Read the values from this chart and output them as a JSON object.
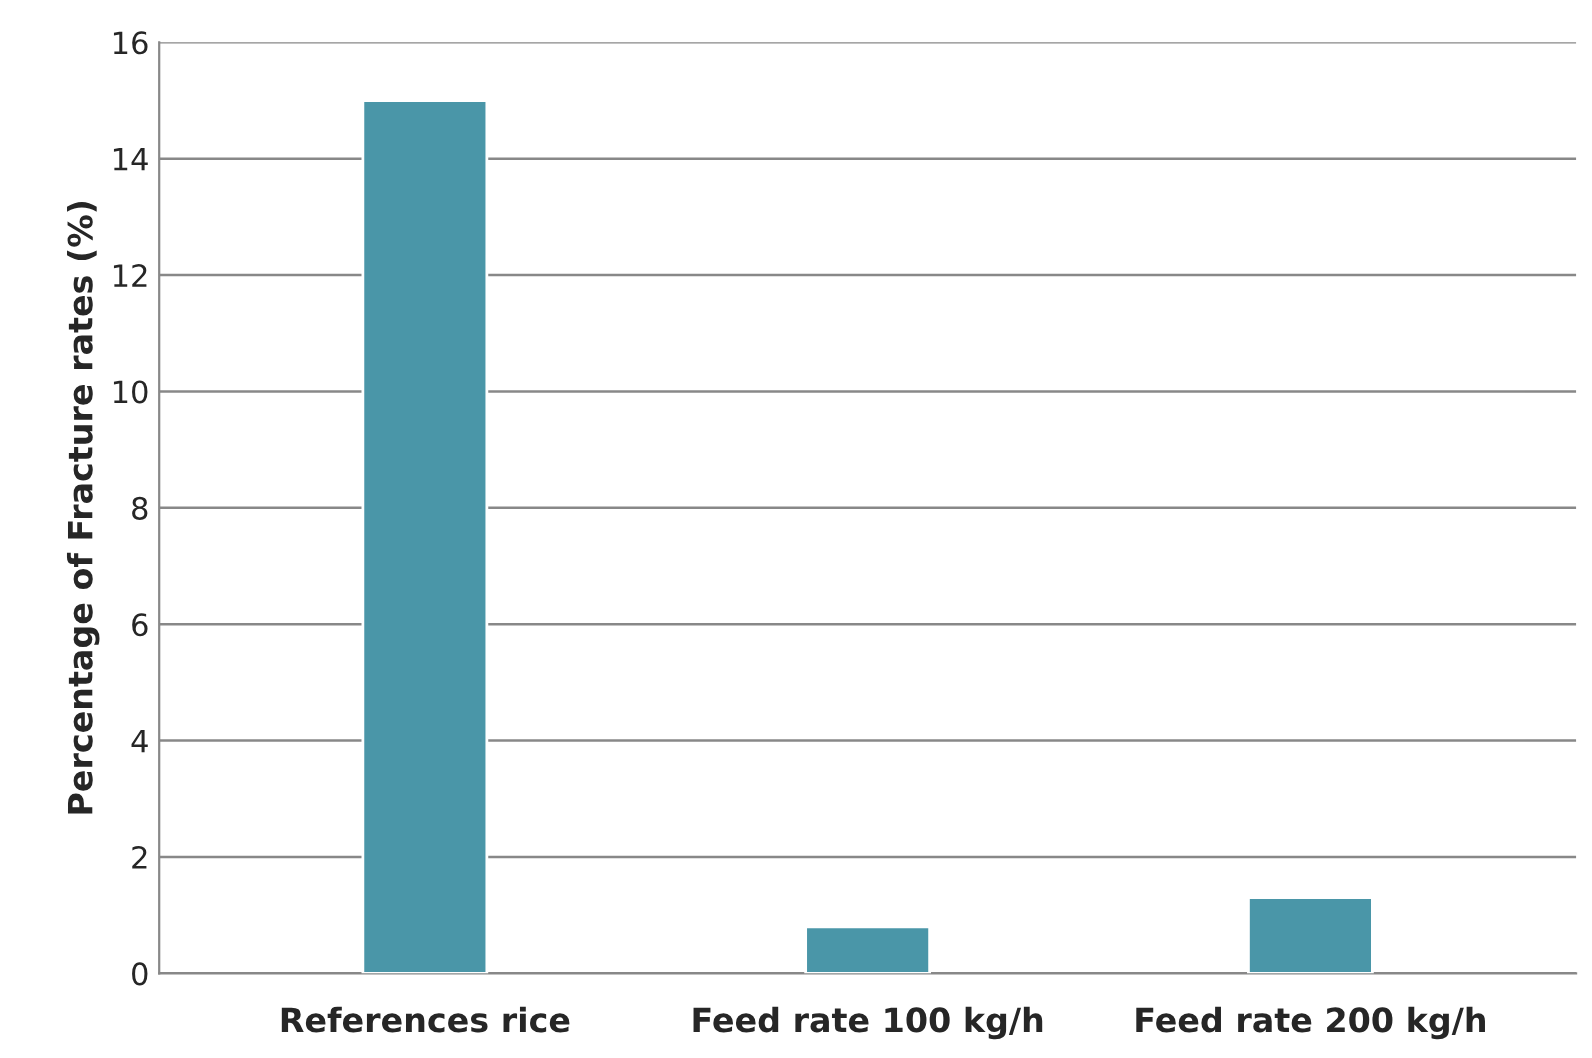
{
  "chart_data": {
    "type": "bar",
    "ylabel": "Percentage of Fracture rates (%)",
    "categories": [
      "References rice",
      "Feed rate 100 kg/h",
      "Feed rate 200 kg/h"
    ],
    "values": [
      15,
      0.8,
      1.3
    ],
    "color": "#4a96a8",
    "ylim": [
      0,
      16
    ],
    "yticks": [
      0,
      2,
      4,
      6,
      8,
      10,
      12,
      14,
      16
    ],
    "grid": "y"
  }
}
